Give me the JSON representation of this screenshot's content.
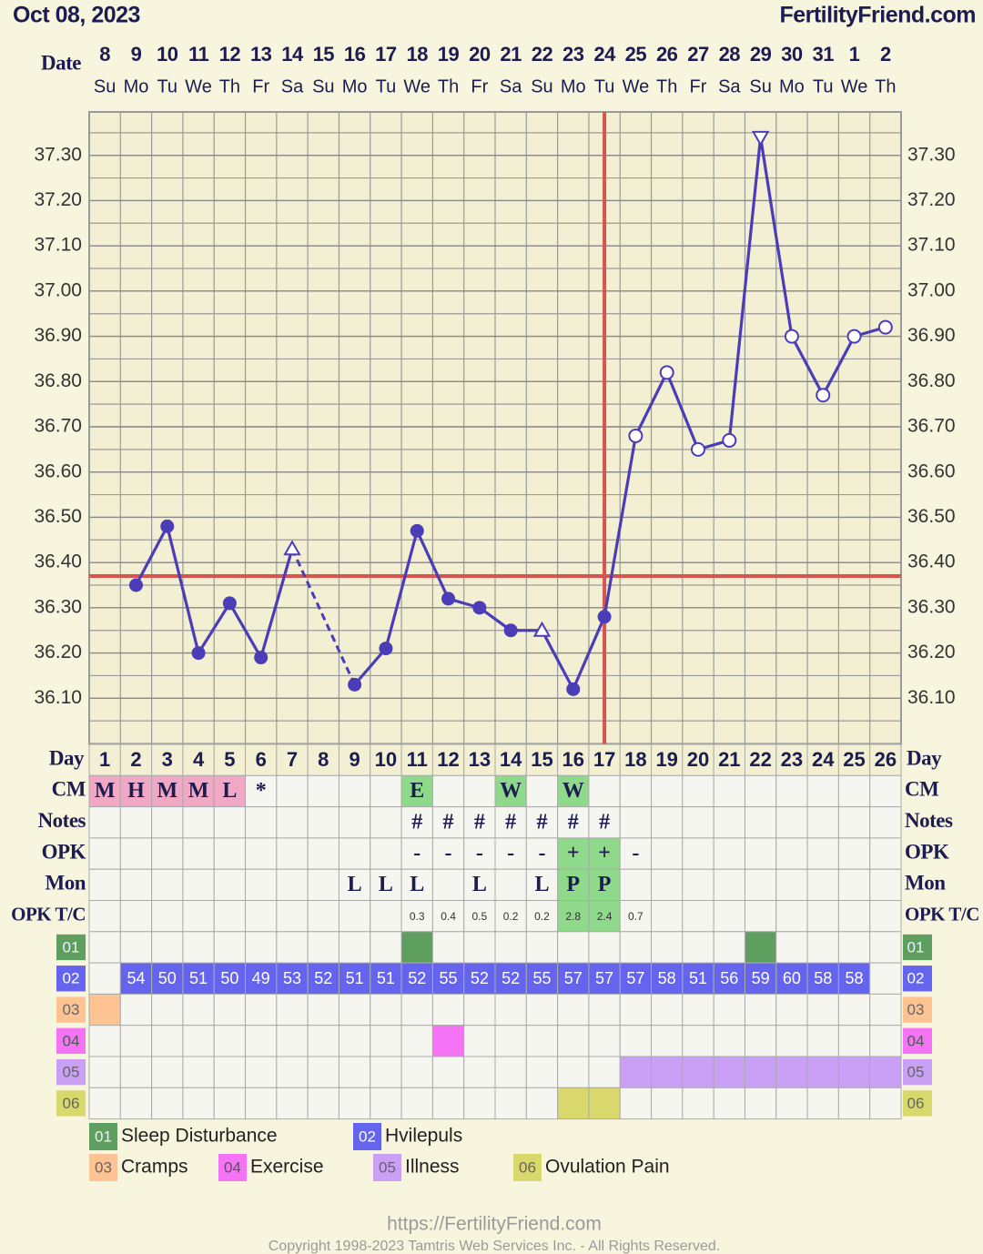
{
  "header": {
    "date": "Oct 08, 2023",
    "site": "FertilityFriend.com"
  },
  "chart_data": {
    "type": "line",
    "date_label": "Date",
    "categories": [
      "8",
      "9",
      "10",
      "11",
      "12",
      "13",
      "14",
      "15",
      "16",
      "17",
      "18",
      "19",
      "20",
      "21",
      "22",
      "23",
      "24",
      "25",
      "26",
      "27",
      "28",
      "29",
      "30",
      "31",
      "1",
      "2"
    ],
    "weekdays": [
      "Su",
      "Mo",
      "Tu",
      "We",
      "Th",
      "Fr",
      "Sa",
      "Su",
      "Mo",
      "Tu",
      "We",
      "Th",
      "Fr",
      "Sa",
      "Su",
      "Mo",
      "Tu",
      "We",
      "Th",
      "Fr",
      "Sa",
      "Su",
      "Mo",
      "Tu",
      "We",
      "Th"
    ],
    "series": [
      {
        "color": "#4b3cb8",
        "values": [
          null,
          36.35,
          36.48,
          36.2,
          36.31,
          36.19,
          36.43,
          null,
          36.13,
          36.21,
          36.47,
          36.32,
          36.3,
          36.25,
          36.25,
          36.12,
          36.28,
          36.68,
          36.82,
          36.65,
          36.67,
          37.34,
          36.9,
          36.77,
          36.9,
          36.92
        ],
        "markers": [
          null,
          "filled",
          "filled",
          "filled",
          "filled",
          "filled",
          "triangle",
          null,
          "filled",
          "filled",
          "filled",
          "filled",
          "filled",
          "filled",
          "triangle",
          "filled",
          "filled",
          "open",
          "open",
          "open",
          "open",
          "triangle-down",
          "open",
          "open",
          "open",
          "open"
        ],
        "gap_style": "dashed"
      }
    ],
    "ylim": [
      36.0,
      37.4
    ],
    "yticks": [
      {
        "value": 36.1,
        "label": "36.10"
      },
      {
        "value": 36.2,
        "label": "36.20"
      },
      {
        "value": 36.3,
        "label": "36.30"
      },
      {
        "value": 36.4,
        "label": "36.40"
      },
      {
        "value": 36.5,
        "label": "36.50"
      },
      {
        "value": 36.6,
        "label": "36.60"
      },
      {
        "value": 36.7,
        "label": "36.70"
      },
      {
        "value": 36.8,
        "label": "36.80"
      },
      {
        "value": 36.9,
        "label": "36.90"
      },
      {
        "value": 37.0,
        "label": "37.00"
      },
      {
        "value": 37.1,
        "label": "37.10"
      },
      {
        "value": 37.2,
        "label": "37.20"
      },
      {
        "value": 37.3,
        "label": "37.30"
      }
    ],
    "grid": true,
    "coverline": 36.37,
    "ovulation_date": "24",
    "reference_color": "#d9534f"
  },
  "table": {
    "day_label": "Day",
    "days": [
      1,
      2,
      3,
      4,
      5,
      6,
      7,
      8,
      9,
      10,
      11,
      12,
      13,
      14,
      15,
      16,
      17,
      18,
      19,
      20,
      21,
      22,
      23,
      24,
      25,
      26
    ],
    "rows": [
      {
        "label": "CM",
        "cells": [
          "M",
          "H",
          "M",
          "M",
          "L",
          "*",
          null,
          null,
          null,
          null,
          "E",
          null,
          null,
          "W",
          null,
          "W",
          null,
          null,
          null,
          null,
          null,
          null,
          null,
          null,
          null,
          null
        ],
        "fills": [
          "#f0a8c4",
          "#f0a8c4",
          "#f0a8c4",
          "#f0a8c4",
          "#f0a8c4",
          null,
          null,
          null,
          null,
          null,
          "#8fd98a",
          null,
          null,
          "#8fd98a",
          null,
          "#8fd98a",
          null,
          null,
          null,
          null,
          null,
          null,
          null,
          null,
          null,
          null
        ]
      },
      {
        "label": "Notes",
        "cells": [
          null,
          null,
          null,
          null,
          null,
          null,
          null,
          null,
          null,
          null,
          "#",
          "#",
          "#",
          "#",
          "#",
          "#",
          "#",
          null,
          null,
          null,
          null,
          null,
          null,
          null,
          null,
          null
        ]
      },
      {
        "label": "OPK",
        "cells": [
          null,
          null,
          null,
          null,
          null,
          null,
          null,
          null,
          null,
          null,
          "-",
          "-",
          "-",
          "-",
          "-",
          "+",
          "+",
          "-",
          null,
          null,
          null,
          null,
          null,
          null,
          null,
          null
        ],
        "fills": [
          null,
          null,
          null,
          null,
          null,
          null,
          null,
          null,
          null,
          null,
          null,
          null,
          null,
          null,
          null,
          "#8fd98a",
          "#8fd98a",
          null,
          null,
          null,
          null,
          null,
          null,
          null,
          null,
          null
        ]
      },
      {
        "label": "Mon",
        "cells": [
          null,
          null,
          null,
          null,
          null,
          null,
          null,
          null,
          "L",
          "L",
          "L",
          null,
          "L",
          null,
          "L",
          "P",
          "P",
          null,
          null,
          null,
          null,
          null,
          null,
          null,
          null,
          null
        ],
        "fills": [
          null,
          null,
          null,
          null,
          null,
          null,
          null,
          null,
          null,
          null,
          null,
          null,
          null,
          null,
          null,
          "#8fd98a",
          "#8fd98a",
          null,
          null,
          null,
          null,
          null,
          null,
          null,
          null,
          null
        ]
      },
      {
        "label": "OPK T/C",
        "small": true,
        "cells": [
          null,
          null,
          null,
          null,
          null,
          null,
          null,
          null,
          null,
          null,
          0.3,
          0.4,
          0.5,
          0.2,
          0.2,
          2.8,
          2.4,
          0.7,
          null,
          null,
          null,
          null,
          null,
          null,
          null,
          null
        ],
        "fills": [
          null,
          null,
          null,
          null,
          null,
          null,
          null,
          null,
          null,
          null,
          null,
          null,
          null,
          null,
          null,
          "#8fd98a",
          "#8fd98a",
          null,
          null,
          null,
          null,
          null,
          null,
          null,
          null,
          null
        ]
      }
    ],
    "symptoms": [
      {
        "code": "01",
        "name": "Sleep Disturbance",
        "color": "#5e9e5e",
        "text_color": "#eef",
        "marked": [
          false,
          false,
          false,
          false,
          false,
          false,
          false,
          false,
          false,
          false,
          true,
          false,
          false,
          false,
          false,
          false,
          false,
          false,
          false,
          false,
          false,
          true,
          false,
          false,
          false,
          false
        ]
      },
      {
        "code": "02",
        "name": "Hvilepuls",
        "color": "#6464ee",
        "text_color": "#fff",
        "values": [
          null,
          54,
          50,
          51,
          50,
          49,
          53,
          52,
          51,
          51,
          52,
          55,
          52,
          52,
          55,
          57,
          57,
          57,
          58,
          51,
          56,
          59,
          60,
          58,
          58,
          null
        ]
      },
      {
        "code": "03",
        "name": "Cramps",
        "color": "#fdc393",
        "text_color": "#666",
        "marked": [
          true,
          false,
          false,
          false,
          false,
          false,
          false,
          false,
          false,
          false,
          false,
          false,
          false,
          false,
          false,
          false,
          false,
          false,
          false,
          false,
          false,
          false,
          false,
          false,
          false,
          false
        ]
      },
      {
        "code": "04",
        "name": "Exercise",
        "color": "#f574f5",
        "text_color": "#555",
        "marked": [
          false,
          false,
          false,
          false,
          false,
          false,
          false,
          false,
          false,
          false,
          false,
          true,
          false,
          false,
          false,
          false,
          false,
          false,
          false,
          false,
          false,
          false,
          false,
          false,
          false,
          false
        ]
      },
      {
        "code": "05",
        "name": "Illness",
        "color": "#c9a0f5",
        "text_color": "#666",
        "marked": [
          false,
          false,
          false,
          false,
          false,
          false,
          false,
          false,
          false,
          false,
          false,
          false,
          false,
          false,
          false,
          false,
          false,
          true,
          true,
          true,
          true,
          true,
          true,
          true,
          true,
          true
        ]
      },
      {
        "code": "06",
        "name": "Ovulation Pain",
        "color": "#d9d86c",
        "text_color": "#666",
        "marked": [
          false,
          false,
          false,
          false,
          false,
          false,
          false,
          false,
          false,
          false,
          false,
          false,
          false,
          false,
          false,
          true,
          true,
          false,
          false,
          false,
          false,
          false,
          false,
          false,
          false,
          false
        ]
      }
    ]
  },
  "footer": {
    "url": "https://FertilityFriend.com",
    "copyright": "Copyright 1998-2023 Tamtris Web Services Inc. - All Rights Reserved."
  }
}
